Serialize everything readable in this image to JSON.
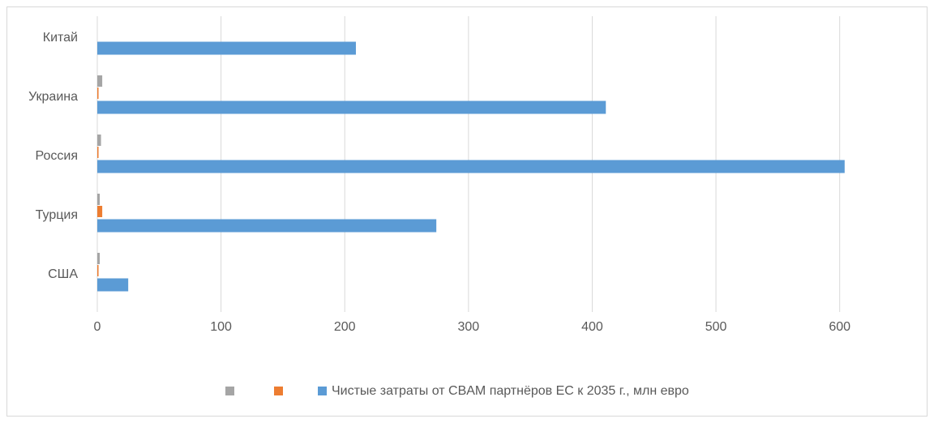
{
  "chart_data": {
    "type": "barh",
    "categories": [
      "Китай",
      "Украина",
      "Россия",
      "Турция",
      "США"
    ],
    "series": [
      {
        "color": "#a5a5a5",
        "values": [
          0,
          4,
          3,
          2,
          2
        ]
      },
      {
        "color": "#ed7d31",
        "values": [
          0,
          1,
          1,
          4,
          1
        ]
      },
      {
        "name": "Чистые затраты от CBAM партнёров ЕС к 2035 г., млн евро",
        "color": "#5b9bd5",
        "values": [
          209,
          411,
          604,
          274,
          25
        ]
      }
    ],
    "xlim": [
      0,
      650
    ],
    "xticks": [
      0,
      100,
      200,
      300,
      400,
      500,
      600
    ],
    "grid": true,
    "legend": "bottom"
  }
}
